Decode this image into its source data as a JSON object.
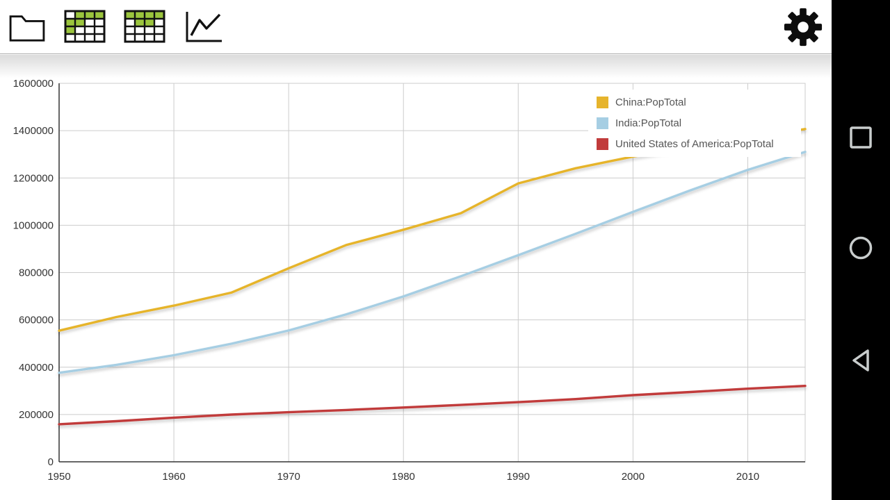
{
  "toolbar": {
    "buttons": [
      {
        "id": "open-file",
        "icon": "folder-icon"
      },
      {
        "id": "table-view",
        "icon": "table-grid-icon"
      },
      {
        "id": "pivot-view",
        "icon": "table-grid-icon-2"
      },
      {
        "id": "chart-view",
        "icon": "line-chart-icon"
      },
      {
        "id": "settings",
        "icon": "gear-icon"
      }
    ]
  },
  "nav_bar": {
    "background": "#000000",
    "icon_color": "#c9cdcd",
    "buttons": [
      {
        "id": "recents",
        "icon": "square-icon"
      },
      {
        "id": "home",
        "icon": "circle-icon"
      },
      {
        "id": "back",
        "icon": "triangle-left-icon"
      }
    ]
  },
  "colors": {
    "grid": "#cccccc",
    "axis": "#333333",
    "tick_text": "#333333",
    "legend_text": "#555555",
    "table_icon_green": "#9BC53D"
  },
  "chart_data": {
    "type": "line",
    "title": "",
    "xlabel": "",
    "ylabel": "",
    "xlim": [
      1950,
      2015
    ],
    "ylim": [
      0,
      1600000
    ],
    "x_ticks": [
      1950,
      1960,
      1970,
      1980,
      1990,
      2000,
      2010
    ],
    "y_ticks": [
      0,
      200000,
      400000,
      600000,
      800000,
      1000000,
      1200000,
      1400000,
      1600000
    ],
    "grid": true,
    "legend_position": "top-right",
    "x": [
      1950,
      1955,
      1960,
      1965,
      1970,
      1975,
      1980,
      1985,
      1990,
      1995,
      2000,
      2005,
      2010,
      2015
    ],
    "series": [
      {
        "name": "China:PopTotal",
        "color": "#E6B42C",
        "values": [
          554419,
          612241,
          660330,
          715185,
          818315,
          916395,
          981235,
          1051040,
          1176884,
          1240921,
          1290551,
          1330776,
          1368811,
          1406848
        ]
      },
      {
        "name": "India:PopTotal",
        "color": "#A6CEE3",
        "values": [
          376325,
          409881,
          450548,
          499123,
          555190,
          623103,
          698953,
          784360,
          873278,
          963923,
          1056576,
          1147610,
          1234281,
          1310152
        ]
      },
      {
        "name": "United States of America:PopTotal",
        "color": "#C13B3B",
        "values": [
          158804,
          171685,
          186721,
          199734,
          209513,
          219081,
          229476,
          240500,
          252120,
          265164,
          281711,
          294994,
          309011,
          320878
        ]
      }
    ]
  }
}
